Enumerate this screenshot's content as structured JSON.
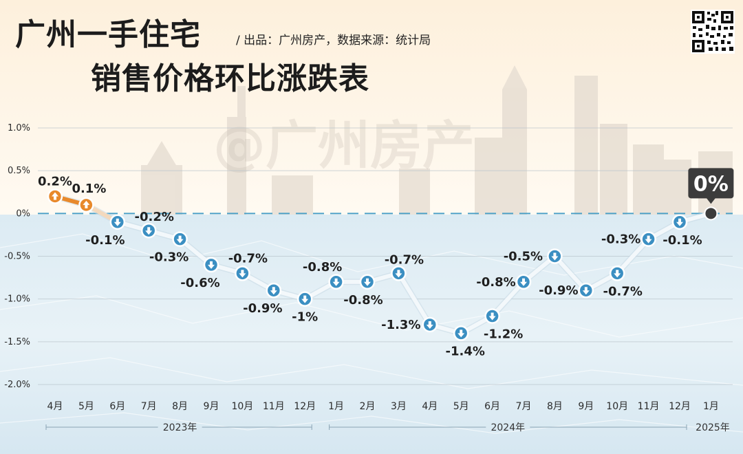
{
  "header": {
    "title_line1": "广州一手住宅",
    "title_line2": "销售价格环比涨跌表",
    "subtitle": "/ 出品：广州房产，数据来源：统计局",
    "watermark": "@广州房产"
  },
  "colors": {
    "up": "#e8892b",
    "down": "#3b8fc2",
    "line": "#f3f8fb",
    "zero_line": "#4aa0c8",
    "callout": "#3c3c3c"
  },
  "icons": {
    "up": "arrow-up-icon",
    "down": "arrow-down-icon",
    "qr": "qr-code-icon"
  },
  "chart_data": {
    "type": "line",
    "title": "广州一手住宅销售价格环比涨跌表",
    "ylim": [
      -2.0,
      1.0
    ],
    "ytick_values": [
      1.0,
      0.5,
      0,
      -0.5,
      -1.0,
      -1.5,
      -2.0
    ],
    "ytick_labels": [
      "1.0%",
      "0.5%",
      "0%",
      "-0.5%",
      "-1.0%",
      "-1.5%",
      "-2.0%"
    ],
    "categories": [
      "4月",
      "5月",
      "6月",
      "7月",
      "8月",
      "9月",
      "10月",
      "11月",
      "12月",
      "1月",
      "2月",
      "3月",
      "4月",
      "5月",
      "6月",
      "7月",
      "8月",
      "9月",
      "10月",
      "11月",
      "12月",
      "1月"
    ],
    "values": [
      0.2,
      0.1,
      -0.1,
      -0.2,
      -0.3,
      -0.6,
      -0.7,
      -0.9,
      -1.0,
      -0.8,
      -0.8,
      -0.7,
      -1.3,
      -1.4,
      -1.2,
      -0.8,
      -0.5,
      -0.9,
      -0.7,
      -0.3,
      -0.1,
      0
    ],
    "labels": [
      "0.2%",
      "0.1%",
      "-0.1%",
      "-0.2%",
      "-0.3%",
      "-0.6%",
      "-0.7%",
      "-0.9%",
      "-1%",
      "-0.8%",
      "-0.8%",
      "-0.7%",
      "-1.3%",
      "-1.4%",
      "-1.2%",
      "-0.8%",
      "-0.5%",
      "-0.9%",
      "-0.7%",
      "-0.3%",
      "-0.1%",
      "0%"
    ],
    "year_groups": [
      {
        "label": "2023年",
        "start": 0,
        "end": 8
      },
      {
        "label": "2024年",
        "start": 9,
        "end": 20
      },
      {
        "label": "2025年",
        "start": 21,
        "end": 21
      }
    ],
    "grid": true,
    "zero_line_dashed": true
  }
}
